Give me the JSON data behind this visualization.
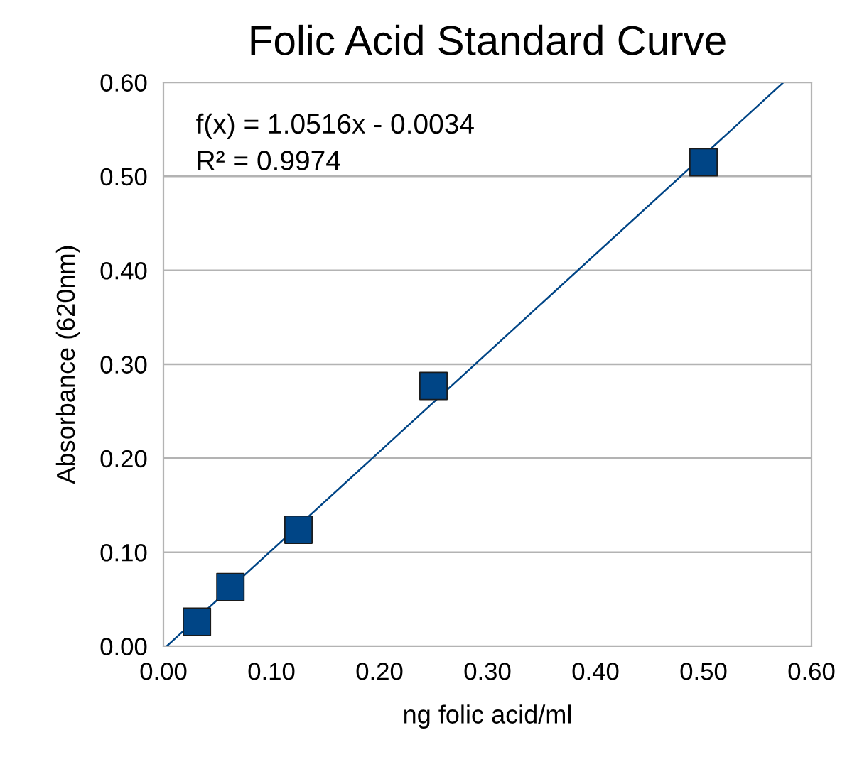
{
  "chart_data": {
    "type": "scatter",
    "title": "Folic Acid Standard Curve",
    "xlabel": "ng folic acid/ml",
    "ylabel": "Absorbance (620nm)",
    "series": [
      {
        "color": "#004586",
        "marker": "square",
        "x": [
          0.031,
          0.062,
          0.125,
          0.25,
          0.5
        ],
        "values": [
          0.026,
          0.063,
          0.124,
          0.277,
          0.515
        ]
      },
      {
        "type": "line",
        "color": "#004586",
        "marker": "none",
        "line_style": "solid",
        "x": [
          0.003,
          0.574
        ],
        "values": [
          0.0,
          0.6
        ]
      }
    ],
    "annotations": [
      "f(x) = 1.0516x - 0.0034",
      "R² = 0.9974"
    ],
    "xlim": [
      0,
      0.6
    ],
    "ylim": [
      0,
      0.6
    ],
    "xticks": [
      {
        "value": 0,
        "label": "0.00"
      },
      {
        "value": 0.1,
        "label": "0.10"
      },
      {
        "value": 0.2,
        "label": "0.20"
      },
      {
        "value": 0.3,
        "label": "0.30"
      },
      {
        "value": 0.4,
        "label": "0.40"
      },
      {
        "value": 0.5,
        "label": "0.50"
      },
      {
        "value": 0.6,
        "label": "0.60"
      }
    ],
    "yticks": [
      {
        "value": 0,
        "label": "0.00"
      },
      {
        "value": 0.1,
        "label": "0.10"
      },
      {
        "value": 0.2,
        "label": "0.20"
      },
      {
        "value": 0.3,
        "label": "0.30"
      },
      {
        "value": 0.4,
        "label": "0.40"
      },
      {
        "value": 0.5,
        "label": "0.50"
      },
      {
        "value": 0.6,
        "label": "0.60"
      }
    ],
    "grid": "y",
    "legend": false
  }
}
